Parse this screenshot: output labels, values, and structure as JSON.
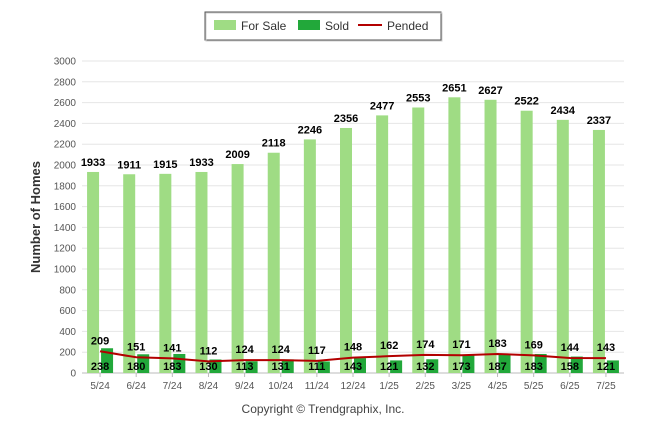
{
  "chart_data": {
    "type": "bar",
    "ylabel": "Number of Homes",
    "xlabel": "",
    "ylim": [
      0,
      3000
    ],
    "yticks": [
      0,
      200,
      400,
      600,
      800,
      1000,
      1200,
      1400,
      1600,
      1800,
      2000,
      2200,
      2400,
      2600,
      2800,
      3000
    ],
    "grid": true,
    "legend_position": "top-center",
    "categories": [
      "5/24",
      "6/24",
      "7/24",
      "8/24",
      "9/24",
      "10/24",
      "11/24",
      "12/24",
      "1/25",
      "2/25",
      "3/25",
      "4/25",
      "5/25",
      "6/25",
      "7/25"
    ],
    "series": [
      {
        "name": "For Sale",
        "type": "bar",
        "color": "#9fdc84",
        "values": [
          1933,
          1911,
          1915,
          1933,
          2009,
          2118,
          2246,
          2356,
          2477,
          2553,
          2651,
          2627,
          2522,
          2434,
          2337
        ]
      },
      {
        "name": "Sold",
        "type": "bar",
        "color": "#22a83a",
        "values": [
          238,
          180,
          183,
          130,
          113,
          131,
          111,
          143,
          121,
          132,
          173,
          187,
          183,
          158,
          121
        ]
      },
      {
        "name": "Pended",
        "type": "line",
        "color": "#b30000",
        "values": [
          209,
          151,
          141,
          112,
          124,
          124,
          117,
          148,
          162,
          174,
          171,
          183,
          169,
          144,
          143
        ]
      }
    ]
  },
  "credit": "Copyright © Trendgraphix, Inc."
}
